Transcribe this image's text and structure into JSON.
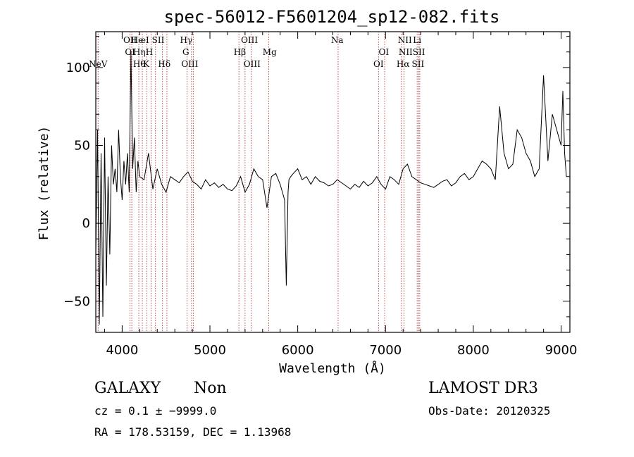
{
  "chart_data": {
    "type": "line",
    "title": "spec-56012-F5601204_sp12-082.fits",
    "xlabel": "Wavelength (Å)",
    "ylabel": "Flux (relative)",
    "xlim": [
      3700,
      9100
    ],
    "ylim": [
      -70,
      123
    ],
    "x_ticks": [
      4000,
      5000,
      6000,
      7000,
      8000,
      9000
    ],
    "y_ticks": [
      -50,
      0,
      50,
      100
    ],
    "x_tick_labels": [
      "4000",
      "5000",
      "6000",
      "7000",
      "8000",
      "9000"
    ],
    "y_tick_labels": [
      "−50",
      "0",
      "50",
      "100"
    ],
    "spectrum": {
      "x": [
        3700,
        3720,
        3740,
        3760,
        3780,
        3800,
        3820,
        3840,
        3860,
        3880,
        3900,
        3920,
        3940,
        3960,
        3980,
        4000,
        4020,
        4040,
        4060,
        4080,
        4100,
        4120,
        4140,
        4160,
        4180,
        4200,
        4250,
        4300,
        4350,
        4400,
        4450,
        4500,
        4550,
        4600,
        4650,
        4700,
        4750,
        4800,
        4850,
        4900,
        4950,
        5000,
        5050,
        5100,
        5150,
        5200,
        5250,
        5300,
        5350,
        5400,
        5450,
        5500,
        5550,
        5600,
        5650,
        5700,
        5750,
        5800,
        5850,
        5870,
        5890,
        5900,
        5920,
        5950,
        6000,
        6050,
        6100,
        6150,
        6200,
        6250,
        6300,
        6350,
        6400,
        6450,
        6500,
        6550,
        6600,
        6650,
        6700,
        6750,
        6800,
        6850,
        6900,
        6950,
        7000,
        7050,
        7100,
        7150,
        7200,
        7250,
        7300,
        7350,
        7400,
        7450,
        7500,
        7550,
        7600,
        7650,
        7700,
        7750,
        7800,
        7850,
        7900,
        7950,
        8000,
        8050,
        8100,
        8150,
        8200,
        8250,
        8300,
        8350,
        8400,
        8450,
        8500,
        8550,
        8600,
        8650,
        8700,
        8750,
        8800,
        8850,
        8900,
        8950,
        9000,
        9020,
        9040,
        9060
      ],
      "y": [
        -20,
        60,
        -65,
        45,
        -60,
        55,
        -40,
        30,
        -20,
        50,
        25,
        35,
        20,
        60,
        30,
        15,
        40,
        25,
        45,
        20,
        110,
        35,
        55,
        20,
        40,
        30,
        28,
        45,
        22,
        35,
        25,
        20,
        30,
        28,
        26,
        30,
        33,
        27,
        25,
        22,
        28,
        24,
        26,
        23,
        25,
        22,
        21,
        24,
        30,
        20,
        25,
        35,
        30,
        28,
        10,
        30,
        32,
        25,
        15,
        -40,
        20,
        28,
        30,
        32,
        35,
        28,
        30,
        25,
        30,
        27,
        26,
        24,
        25,
        28,
        26,
        24,
        22,
        25,
        23,
        27,
        24,
        26,
        30,
        25,
        22,
        30,
        28,
        25,
        35,
        38,
        30,
        28,
        26,
        25,
        24,
        23,
        25,
        27,
        28,
        24,
        26,
        30,
        32,
        28,
        30,
        35,
        40,
        38,
        35,
        28,
        75,
        45,
        35,
        38,
        60,
        55,
        45,
        40,
        30,
        35,
        95,
        40,
        70,
        60,
        50,
        85,
        45,
        30
      ]
    },
    "line_markers": [
      {
        "label": "NeV",
        "x": 3726,
        "row": 3
      },
      {
        "label": "OII",
        "x": 4090,
        "row": 1
      },
      {
        "label": "OI",
        "x": 4090,
        "row": 2
      },
      {
        "label": "He",
        "x": 4170,
        "row": 1
      },
      {
        "label": "Hη",
        "x": 4195,
        "row": 2
      },
      {
        "label": "Hθ",
        "x": 4195,
        "row": 3
      },
      {
        "label": "eI",
        "x": 4260,
        "row": 1
      },
      {
        "label": "H",
        "x": 4310,
        "row": 2
      },
      {
        "label": "K",
        "x": 4275,
        "row": 3
      },
      {
        "label": "SII",
        "x": 4410,
        "row": 1
      },
      {
        "label": "Hδ",
        "x": 4480,
        "row": 3
      },
      {
        "label": "Hγ",
        "x": 4730,
        "row": 1
      },
      {
        "label": "G",
        "x": 4725,
        "row": 2
      },
      {
        "label": "OIII",
        "x": 4770,
        "row": 3
      },
      {
        "label": "OIII",
        "x": 5450,
        "row": 1
      },
      {
        "label": "Hβ",
        "x": 5340,
        "row": 2
      },
      {
        "label": "OIII",
        "x": 5480,
        "row": 3
      },
      {
        "label": "Mg",
        "x": 5680,
        "row": 2
      },
      {
        "label": "Na",
        "x": 6450,
        "row": 1
      },
      {
        "label": "OI",
        "x": 6980,
        "row": 2
      },
      {
        "label": "OI",
        "x": 6920,
        "row": 3
      },
      {
        "label": "NII",
        "x": 7220,
        "row": 1
      },
      {
        "label": "Li",
        "x": 7360,
        "row": 1
      },
      {
        "label": "NIISII",
        "x": 7300,
        "row": 2
      },
      {
        "label": "Hα",
        "x": 7200,
        "row": 3
      },
      {
        "label": "SII",
        "x": 7370,
        "row": 3
      }
    ],
    "marker_lines_x": [
      3726,
      4090,
      4110,
      4190,
      4230,
      4280,
      4330,
      4380,
      4460,
      4510,
      4740,
      4790,
      4810,
      5330,
      5400,
      5470,
      5670,
      6460,
      6920,
      6990,
      7180,
      7210,
      7360,
      7380,
      7390
    ]
  },
  "info": {
    "object_class": "GALAXY",
    "subclass": "Non",
    "cz_line": "cz = 0.1 ± −9999.0",
    "radec_line": "RA = 178.53159, DEC =    1.13968",
    "survey": "LAMOST DR3",
    "obs_date_line": "Obs-Date: 20120325"
  }
}
